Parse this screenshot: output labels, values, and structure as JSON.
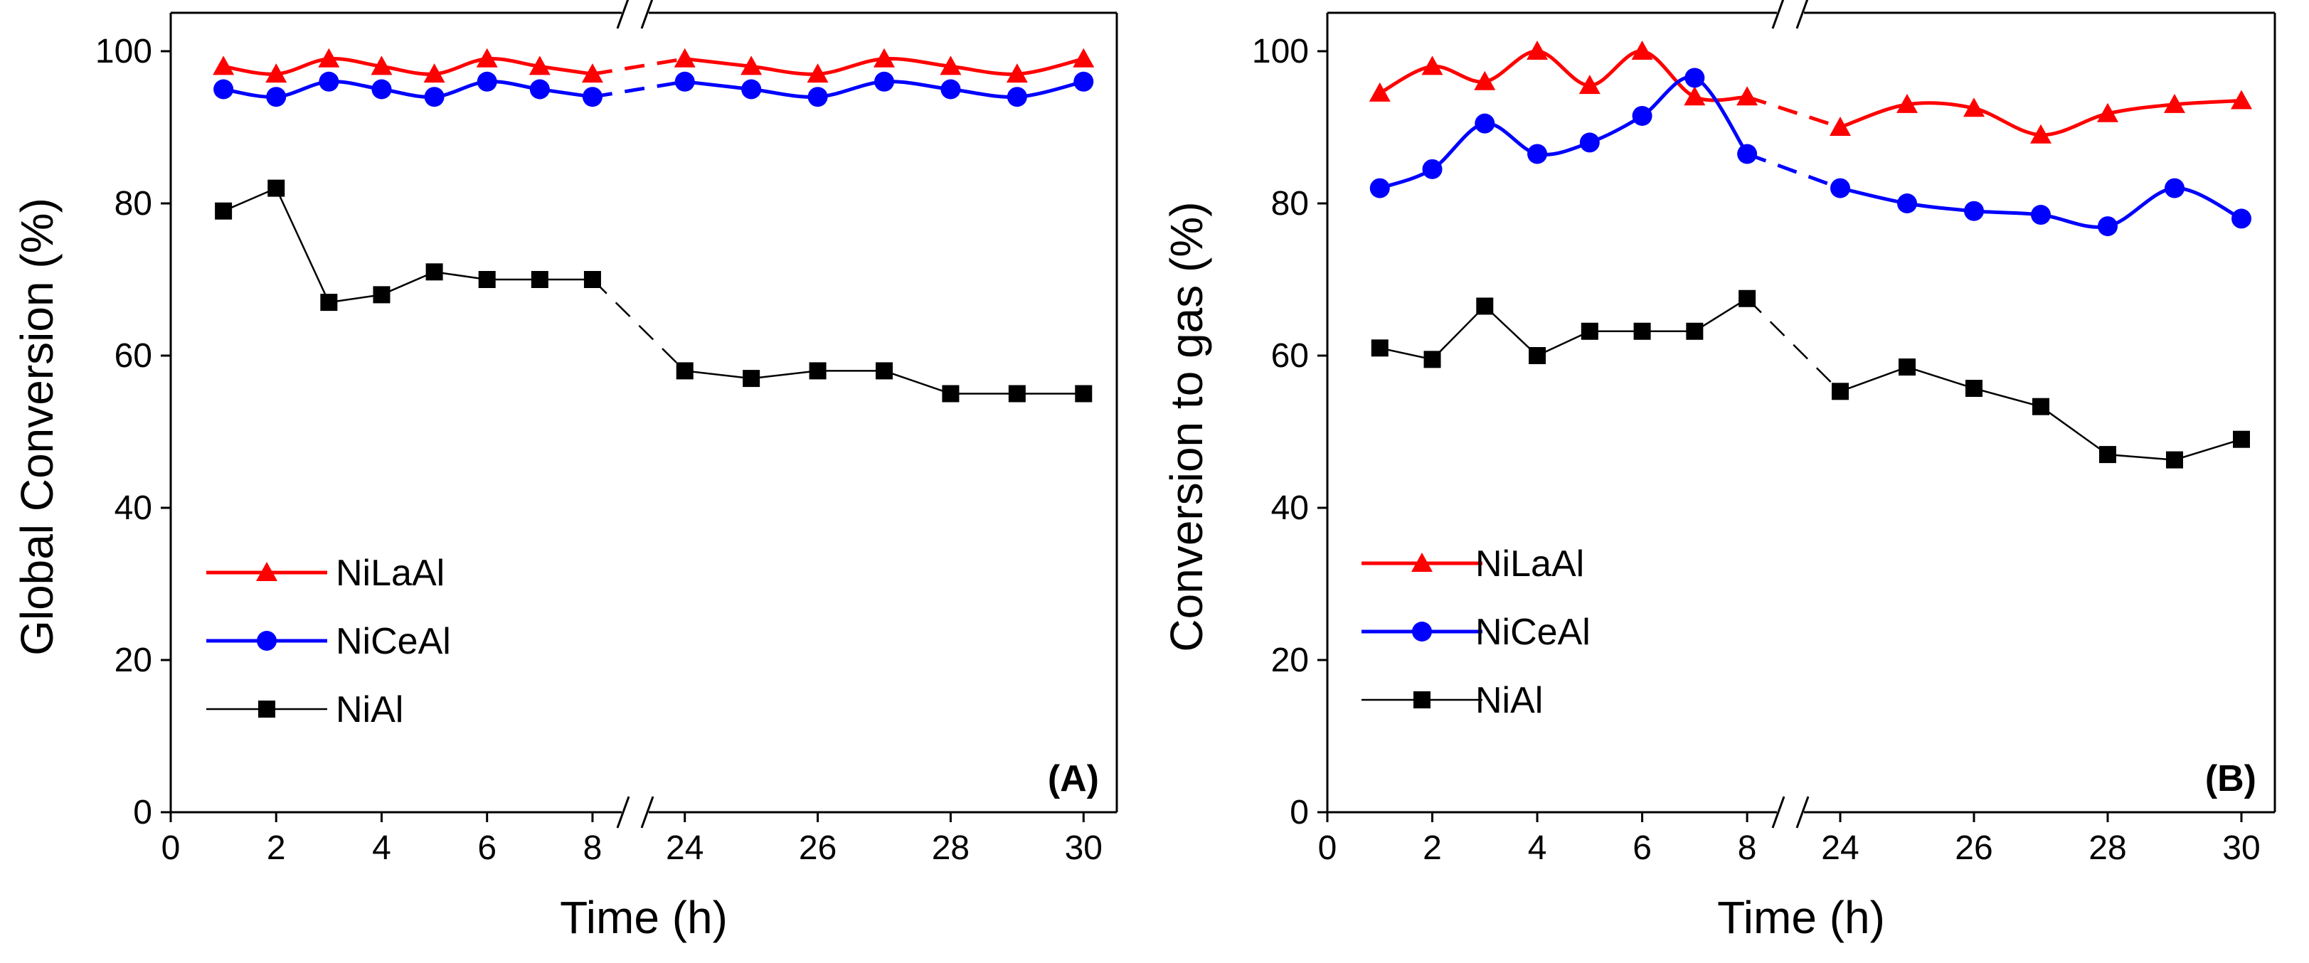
{
  "chart_data": [
    {
      "type": "line",
      "panel_label": "(A)",
      "xlabel": "Time (h)",
      "ylabel": "Global Conversion (%)",
      "ylim": [
        0,
        100
      ],
      "yticks": [
        "0",
        "20",
        "40",
        "60",
        "80",
        "100"
      ],
      "x_segments": [
        {
          "range": [
            0,
            8.5
          ],
          "ticks": [
            "0",
            "2",
            "4",
            "6",
            "8"
          ]
        },
        {
          "range": [
            23.5,
            30.5
          ],
          "ticks": [
            "24",
            "26",
            "28",
            "30"
          ]
        }
      ],
      "legend_position": "center-left",
      "series": [
        {
          "name": "NiLaAl",
          "color": "#ff0000",
          "marker": "triangle",
          "x": [
            1,
            2,
            3,
            4,
            5,
            6,
            7,
            8,
            24,
            25,
            26,
            27,
            28,
            29,
            30
          ],
          "y": [
            98,
            97,
            99,
            98,
            97,
            99,
            98,
            97,
            99,
            98,
            97,
            99,
            98,
            97,
            99
          ]
        },
        {
          "name": "NiCeAl",
          "color": "#0000ff",
          "marker": "circle",
          "x": [
            1,
            2,
            3,
            4,
            5,
            6,
            7,
            8,
            24,
            25,
            26,
            27,
            28,
            29,
            30
          ],
          "y": [
            95,
            94,
            96,
            95,
            94,
            96,
            95,
            94,
            96,
            95,
            94,
            96,
            95,
            94,
            96
          ]
        },
        {
          "name": "NiAl",
          "color": "#000000",
          "marker": "square",
          "x": [
            1,
            2,
            3,
            4,
            5,
            6,
            7,
            8,
            24,
            25,
            26,
            27,
            28,
            29,
            30
          ],
          "y": [
            79,
            82,
            67,
            68,
            71,
            70,
            70,
            70,
            58,
            57,
            58,
            58,
            55,
            55,
            55
          ]
        }
      ]
    },
    {
      "type": "line",
      "panel_label": "(B)",
      "xlabel": "Time (h)",
      "ylabel": "Conversion to gas (%)",
      "ylim": [
        0,
        100
      ],
      "yticks": [
        "0",
        "20",
        "40",
        "60",
        "80",
        "100"
      ],
      "x_segments": [
        {
          "range": [
            0,
            8.5
          ],
          "ticks": [
            "0",
            "2",
            "4",
            "6",
            "8"
          ]
        },
        {
          "range": [
            23.5,
            30.5
          ],
          "ticks": [
            "24",
            "26",
            "28",
            "30"
          ]
        }
      ],
      "legend_position": "center-left",
      "series": [
        {
          "name": "NiLaAl",
          "color": "#ff0000",
          "marker": "triangle",
          "x": [
            1,
            2,
            3,
            4,
            5,
            6,
            7,
            8,
            24,
            25,
            26,
            27,
            28,
            29,
            30
          ],
          "y": [
            94.5,
            98,
            96,
            100,
            95.5,
            100,
            94,
            94,
            90,
            93,
            92.5,
            89,
            91.8,
            93,
            93.5
          ]
        },
        {
          "name": "NiCeAl",
          "color": "#0000ff",
          "marker": "circle",
          "x": [
            1,
            2,
            3,
            4,
            5,
            6,
            7,
            8,
            24,
            25,
            26,
            27,
            28,
            29,
            30
          ],
          "y": [
            82,
            84.5,
            90.5,
            86.5,
            88,
            91.5,
            96.5,
            86.5,
            82,
            80,
            79,
            78.5,
            77,
            82,
            78
          ]
        },
        {
          "name": "NiAl",
          "color": "#000000",
          "marker": "square",
          "x": [
            1,
            2,
            3,
            4,
            5,
            6,
            7,
            8,
            24,
            25,
            26,
            27,
            28,
            29,
            30
          ],
          "y": [
            61,
            59.5,
            66.5,
            60,
            63.2,
            63.2,
            63.2,
            67.5,
            55.3,
            58.5,
            55.7,
            53.3,
            47,
            46.3,
            49
          ]
        }
      ]
    }
  ]
}
